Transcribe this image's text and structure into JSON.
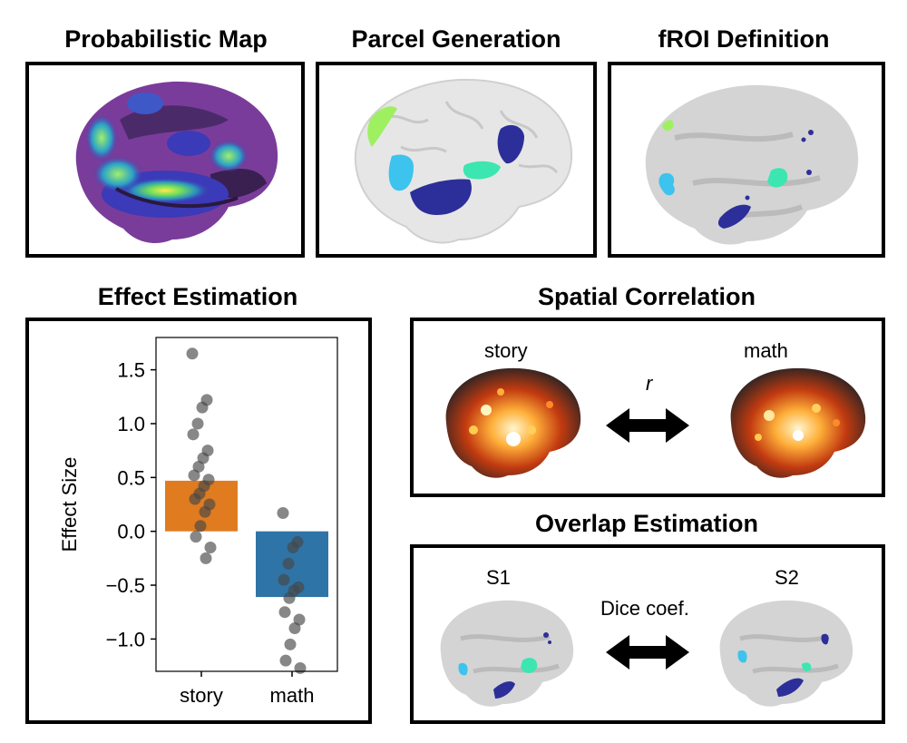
{
  "titles": {
    "prob_map": "Probabilistic Map",
    "parcel": "Parcel Generation",
    "froi": "fROI Definition",
    "effect": "Effect Estimation",
    "spatial": "Spatial Correlation",
    "overlap": "Overlap Estimation"
  },
  "spatial": {
    "left_label": "story",
    "right_label": "math",
    "arrow_label": "r"
  },
  "overlap": {
    "left_label": "S1",
    "right_label": "S2",
    "arrow_label": "Dice coef."
  },
  "colors": {
    "story_bar": "#e07b20",
    "math_bar": "#2f74a6",
    "parcel_cyan": "#3cc3ee",
    "parcel_navy": "#2c2f99",
    "parcel_teal": "#3ce6b0",
    "parcel_lime": "#9ef060"
  },
  "chart_data": {
    "type": "bar",
    "categories": [
      "story",
      "math"
    ],
    "values": [
      0.47,
      -0.61
    ],
    "ylabel": "Effect Size",
    "ylim": [
      -1.3,
      1.8
    ],
    "yticks": [
      -1.0,
      -0.5,
      0.0,
      0.5,
      1.0,
      1.5
    ],
    "ytick_labels": [
      "−1.0",
      "−0.5",
      "0.0",
      "0.5",
      "1.0",
      "1.5"
    ],
    "points": {
      "story": [
        1.65,
        1.22,
        1.15,
        1.0,
        0.9,
        0.75,
        0.68,
        0.6,
        0.52,
        0.48,
        0.42,
        0.35,
        0.3,
        0.25,
        0.18,
        0.05,
        -0.05,
        -0.15,
        -0.25
      ],
      "math": [
        0.17,
        -0.1,
        -0.15,
        -0.3,
        -0.45,
        -0.52,
        -0.55,
        -0.62,
        -0.75,
        -0.82,
        -0.9,
        -1.05,
        -1.2,
        -1.27
      ]
    }
  }
}
